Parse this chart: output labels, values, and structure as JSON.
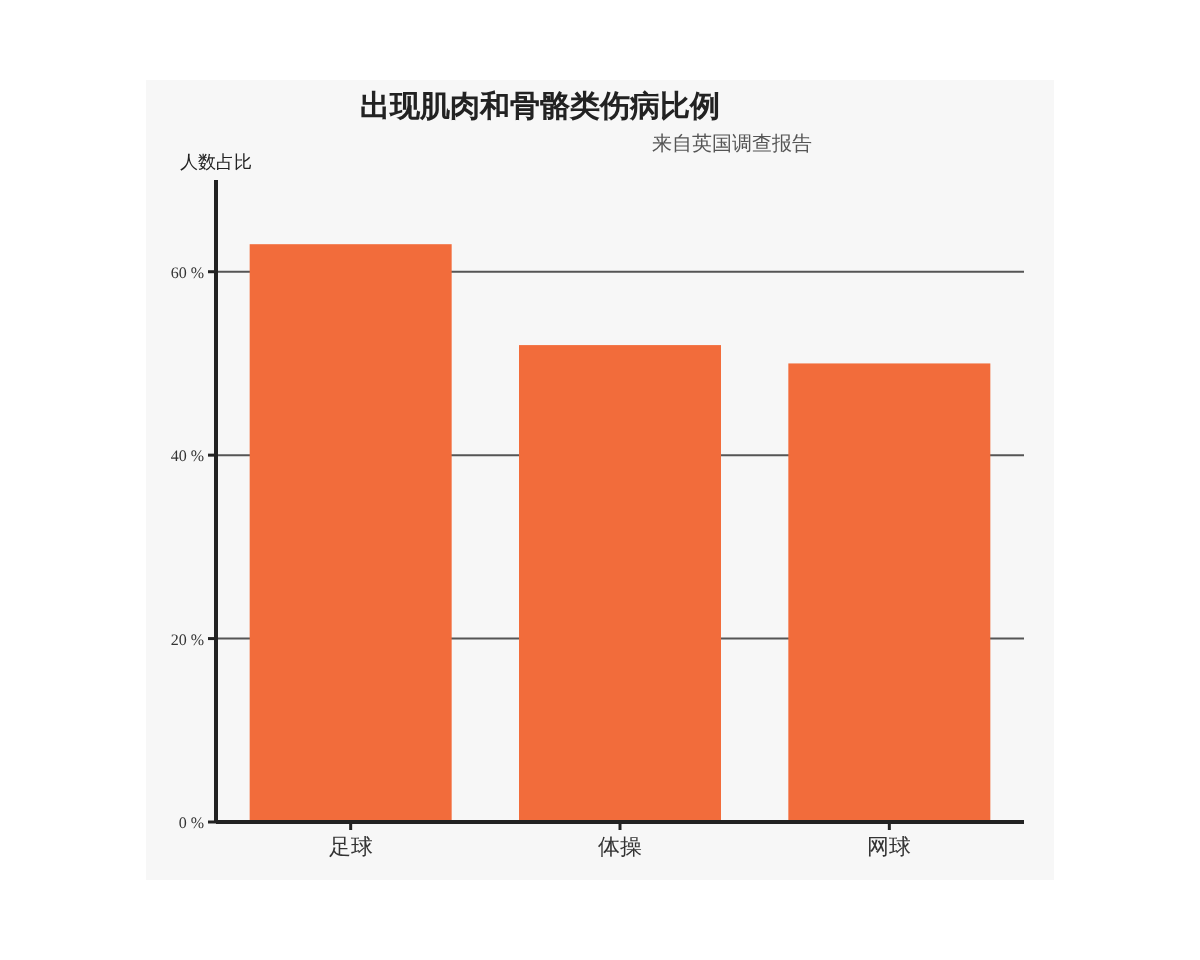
{
  "chart_data": {
    "type": "bar",
    "title": "出现肌肉和骨骼类伤病比例",
    "subtitle": "来自英国调查报告",
    "ylabel": "人数占比",
    "categories": [
      "足球",
      "体操",
      "网球"
    ],
    "values": [
      63,
      52,
      50
    ],
    "color": "#f26c3b",
    "ylim": [
      0,
      70
    ],
    "yticks": [
      {
        "value": 0,
        "label": "0 %"
      },
      {
        "value": 20,
        "label": "20 %"
      },
      {
        "value": 40,
        "label": "40 %"
      },
      {
        "value": 60,
        "label": "60 %"
      }
    ],
    "grid": "y"
  }
}
